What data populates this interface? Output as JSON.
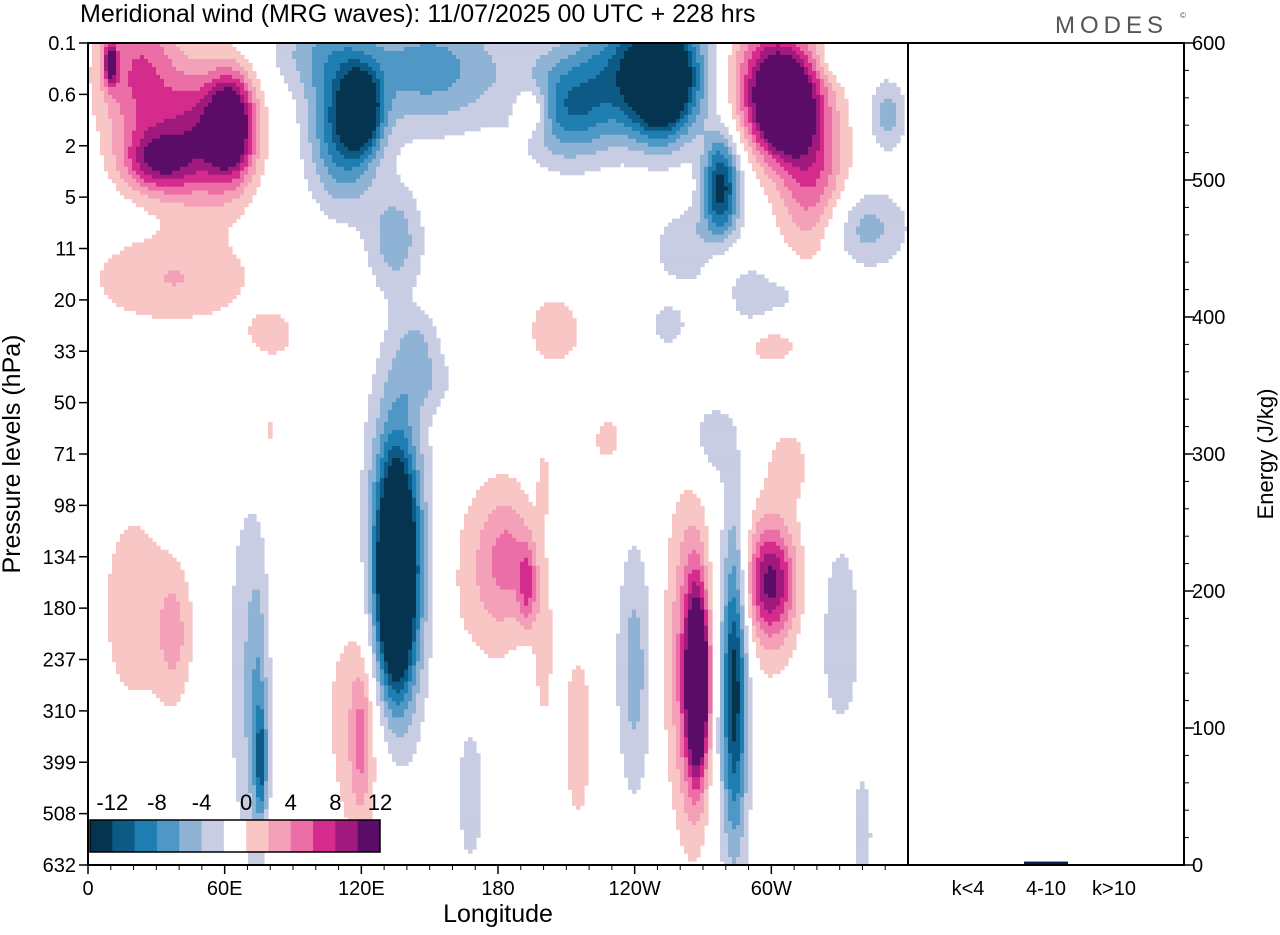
{
  "header": {
    "title": "Meridional wind (MRG waves):  11/07/2025  00 UTC  + 228 hrs",
    "logo_text": "MODES",
    "logo_mark": "©"
  },
  "chart_data": [
    {
      "type": "heatmap",
      "title": "Meridional wind (MRG waves):  11/07/2025  00 UTC  + 228 hrs",
      "xlabel": "Longitude",
      "ylabel": "Pressure levels (hPa)",
      "x_ticks": [
        "0",
        "60E",
        "120E",
        "180",
        "120W",
        "60W"
      ],
      "x_tick_degrees": [
        0,
        60,
        120,
        180,
        240,
        300
      ],
      "xlim": [
        0,
        360
      ],
      "y_ticks": [
        "0.1",
        "0.6",
        "2",
        "5",
        "11",
        "20",
        "33",
        "50",
        "71",
        "98",
        "134",
        "180",
        "237",
        "310",
        "399",
        "508",
        "632"
      ],
      "colorbar": {
        "labels": [
          "-12",
          "-8",
          "-4",
          "0",
          "4",
          "8",
          "12"
        ],
        "levels": [
          -14,
          -12,
          -10,
          -8,
          -6,
          -4,
          -2,
          2,
          4,
          6,
          8,
          10,
          12,
          14
        ],
        "colors": [
          "#053451",
          "#0d5a86",
          "#1f7eb1",
          "#4f97c4",
          "#8fb3d4",
          "#c8cde3",
          "#ffffff",
          "#f8c6c4",
          "#f4a0b8",
          "#ec6ea6",
          "#d42b8c",
          "#a01a7d",
          "#5a0c66"
        ]
      },
      "blobs": [
        {
          "lon": 10,
          "lev": 0.4,
          "rlon": 3,
          "rlev": 0.4,
          "v": 11
        },
        {
          "lon": 22,
          "lev": 0.6,
          "rlon": 18,
          "rlev": 1.5,
          "v": 8
        },
        {
          "lon": 30,
          "lev": 2.3,
          "rlon": 15,
          "rlev": 0.6,
          "v": 9
        },
        {
          "lon": 50,
          "lev": 1.8,
          "rlon": 20,
          "rlev": 1.3,
          "v": 10
        },
        {
          "lon": 63,
          "lev": 1.6,
          "rlon": 10,
          "rlev": 1.0,
          "v": 13
        },
        {
          "lon": 37,
          "lev": 4.6,
          "rlon": 38,
          "rlev": 0.9,
          "v": 4
        },
        {
          "lon": 100,
          "lev": 0.15,
          "rlon": 22,
          "rlev": 0.8,
          "v": -4
        },
        {
          "lon": 112,
          "lev": 1.7,
          "rlon": 15,
          "rlev": 1.4,
          "v": -10
        },
        {
          "lon": 120,
          "lev": 1.3,
          "rlon": 8,
          "rlev": 0.7,
          "v": -13
        },
        {
          "lon": 150,
          "lev": 0.5,
          "rlon": 35,
          "rlev": 1.2,
          "v": -7
        },
        {
          "lon": 135,
          "lev": 3.8,
          "rlon": 12,
          "rlev": 1.0,
          "v": -5
        },
        {
          "lon": 195,
          "lev": 1.3,
          "rlon": 8,
          "rlev": 0.5,
          "v": 6
        },
        {
          "lon": 210,
          "lev": 1.3,
          "rlon": 20,
          "rlev": 1.0,
          "v": -8
        },
        {
          "lon": 245,
          "lev": 0.5,
          "rlon": 30,
          "rlev": 1.3,
          "v": -11
        },
        {
          "lon": 252,
          "lev": 0.8,
          "rlon": 13,
          "rlev": 1.0,
          "v": -14
        },
        {
          "lon": 278,
          "lev": 2.8,
          "rlon": 8,
          "rlev": 1.0,
          "v": -13
        },
        {
          "lon": 300,
          "lev": 0.7,
          "rlon": 20,
          "rlev": 1.3,
          "v": 11
        },
        {
          "lon": 306,
          "lev": 1.3,
          "rlon": 13,
          "rlev": 0.9,
          "v": 13
        },
        {
          "lon": 318,
          "lev": 2.6,
          "rlon": 15,
          "rlev": 1.6,
          "v": 8
        },
        {
          "lon": 340,
          "lev": 3.6,
          "rlon": 20,
          "rlev": 0.8,
          "v": -5
        },
        {
          "lon": 351,
          "lev": 1.4,
          "rlon": 8,
          "rlev": 0.7,
          "v": -5
        },
        {
          "lon": 330,
          "lev": 0.3,
          "rlon": 10,
          "rlev": 0.4,
          "v": -3
        },
        {
          "lon": 205,
          "lev": 5.6,
          "rlon": 15,
          "rlev": 0.9,
          "v": 3
        },
        {
          "lon": 275,
          "lev": 4.1,
          "rlon": 12,
          "rlev": 0.5,
          "v": 3
        },
        {
          "lon": 265,
          "lev": 4.0,
          "rlon": 15,
          "rlev": 0.7,
          "v": -5
        },
        {
          "lon": 290,
          "lev": 5.0,
          "rlon": 8,
          "rlev": 0.7,
          "v": -3
        },
        {
          "lon": 305,
          "lev": 5.0,
          "rlon": 15,
          "rlev": 0.6,
          "v": -3
        },
        {
          "lon": 298,
          "lev": 5.8,
          "rlon": 20,
          "rlev": 0.6,
          "v": 3
        },
        {
          "lon": 80,
          "lev": 5.7,
          "rlon": 12,
          "rlev": 0.5,
          "v": 3
        },
        {
          "lon": 255,
          "lev": 5.5,
          "rlon": 10,
          "rlev": 0.5,
          "v": -3
        },
        {
          "lon": 145,
          "lev": 5.8,
          "rlon": 10,
          "rlev": 0.6,
          "v": -3
        },
        {
          "lon": 148,
          "lev": 6.6,
          "rlon": 13,
          "rlev": 0.6,
          "v": -3
        },
        {
          "lon": 200,
          "lev": 8.5,
          "rlon": 3,
          "rlev": 0.8,
          "v": 2.5
        },
        {
          "lon": 80,
          "lev": 7.5,
          "rlon": 3,
          "rlev": 0.4,
          "v": 2.5
        },
        {
          "lon": 272,
          "lev": 7.7,
          "rlon": 10,
          "rlev": 0.8,
          "v": -3
        },
        {
          "lon": 228,
          "lev": 7.7,
          "rlon": 7,
          "rlev": 0.5,
          "v": 3
        },
        {
          "lon": 308,
          "lev": 8.2,
          "rlon": 8,
          "rlev": 0.7,
          "v": 3
        },
        {
          "lon": 20,
          "lev": 11.0,
          "rlon": 18,
          "rlev": 2.5,
          "v": 3
        },
        {
          "lon": 38,
          "lev": 11.5,
          "rlon": 8,
          "rlev": 1.3,
          "v": 4
        },
        {
          "lon": 68,
          "lev": 12.2,
          "rlon": 8,
          "rlev": 4.0,
          "v": -3
        },
        {
          "lon": 75,
          "lev": 13.0,
          "rlon": 5,
          "rlev": 3.0,
          "v": -5
        },
        {
          "lon": 76,
          "lev": 14.0,
          "rlon": 2.5,
          "rlev": 1.0,
          "v": -7
        },
        {
          "lon": 135,
          "lev": 10.0,
          "rlon": 15,
          "rlev": 3.5,
          "v": -6
        },
        {
          "lon": 136,
          "lev": 10.2,
          "rlon": 10,
          "rlev": 2.6,
          "v": -10
        },
        {
          "lon": 135,
          "lev": 10.5,
          "rlon": 7,
          "rlev": 1.8,
          "v": -15
        },
        {
          "lon": 118,
          "lev": 13.0,
          "rlon": 18,
          "rlev": 3.2,
          "v": 3
        },
        {
          "lon": 120,
          "lev": 13.5,
          "rlon": 5,
          "rlev": 1.5,
          "v": 5
        },
        {
          "lon": 173,
          "lev": 10.5,
          "rlon": 18,
          "rlev": 2.2,
          "v": 3
        },
        {
          "lon": 185,
          "lev": 10.0,
          "rlon": 12,
          "rlev": 1.3,
          "v": 5
        },
        {
          "lon": 193,
          "lev": 10.6,
          "rlon": 4,
          "rlev": 0.8,
          "v": 6
        },
        {
          "lon": 200,
          "lev": 11.8,
          "rlon": 4,
          "rlev": 1.6,
          "v": 3
        },
        {
          "lon": 168,
          "lev": 14.5,
          "rlon": 8,
          "rlev": 2.0,
          "v": -3
        },
        {
          "lon": 215,
          "lev": 13.5,
          "rlon": 8,
          "rlev": 2.2,
          "v": 3
        },
        {
          "lon": 240,
          "lev": 12.2,
          "rlon": 8,
          "rlev": 2.5,
          "v": -5
        },
        {
          "lon": 262,
          "lev": 12.0,
          "rlon": 10,
          "rlev": 3.3,
          "v": 5
        },
        {
          "lon": 267,
          "lev": 12.4,
          "rlon": 6,
          "rlev": 2.3,
          "v": 10
        },
        {
          "lon": 268,
          "lev": 12.5,
          "rlon": 4,
          "rlev": 1.4,
          "v": 14
        },
        {
          "lon": 283,
          "lev": 12.3,
          "rlon": 8,
          "rlev": 4.0,
          "v": -5
        },
        {
          "lon": 284,
          "lev": 12.5,
          "rlon": 5,
          "rlev": 2.8,
          "v": -9
        },
        {
          "lon": 298,
          "lev": 10.5,
          "rlon": 16,
          "rlev": 2.0,
          "v": 4
        },
        {
          "lon": 300,
          "lev": 10.5,
          "rlon": 10,
          "rlev": 1.0,
          "v": 9
        },
        {
          "lon": 330,
          "lev": 11.5,
          "rlon": 12,
          "rlev": 2.5,
          "v": -3
        },
        {
          "lon": 340,
          "lev": 15.5,
          "rlon": 5,
          "rlev": 1.4,
          "v": -3
        }
      ]
    },
    {
      "type": "bar",
      "title": "",
      "ylabel": "Energy (J/kg)",
      "categories": [
        "k<4",
        "4-10",
        "k>10"
      ],
      "values": [
        0.5,
        2.5,
        0.3
      ],
      "ylim": [
        0,
        600
      ],
      "y_ticks": [
        "0",
        "100",
        "200",
        "300",
        "400",
        "500",
        "600"
      ],
      "bar_color": "#0a1a4a"
    }
  ]
}
